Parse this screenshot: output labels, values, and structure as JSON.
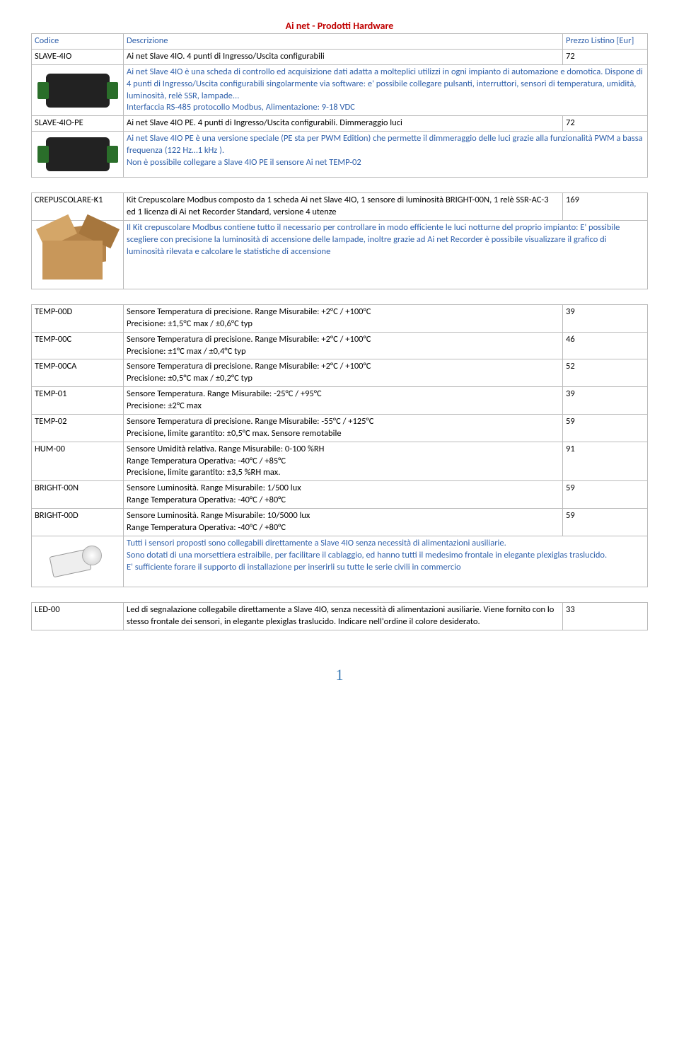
{
  "title": "Ai net - Prodotti Hardware",
  "header": {
    "code": "Codice",
    "desc": "Descrizione",
    "price": "Prezzo Listino [Eur]"
  },
  "rows": [
    {
      "code": "SLAVE-4IO",
      "desc": "Ai net Slave 4IO. 4 punti di Ingresso/Uscita configurabili",
      "price": "72",
      "note": "Ai net Slave 4IO è una scheda di controllo ed acquisizione dati adatta a molteplici utilizzi in ogni impianto di automazione e domotica. Dispone di 4 punti di Ingresso/Uscita configurabili singolarmente via software: e' possibile collegare pulsanti, interruttori, sensori di temperatura, umidità, luminosità, relè SSR, lampade...\nInterfaccia RS-485 protocollo Modbus, Alimentazione: 9-18 VDC",
      "img": "slave"
    },
    {
      "code": "SLAVE-4IO-PE",
      "desc": "Ai net Slave 4IO PE. 4 punti di Ingresso/Uscita configurabili. Dimmeraggio luci",
      "price": "72",
      "note": "Ai net Slave 4IO PE è una versione speciale (PE sta per PWM Edition) che permette il dimmeraggio delle luci grazie alla funzionalità PWM a bassa frequenza (122 Hz…1 kHz ).\nNon è possibile collegare a Slave 4IO PE il sensore Ai net TEMP-02",
      "img": "slave"
    }
  ],
  "rows2": [
    {
      "code": "CREPUSCOLARE-K1",
      "desc": "Kit Crepuscolare Modbus composto da 1 scheda Ai net Slave 4IO, 1 sensore di luminosità BRIGHT-00N, 1 relè SSR-AC-3 ed 1 licenza di Ai net Recorder Standard, versione 4 utenze",
      "price": "169",
      "note": "Il Kit crepuscolare Modbus contiene tutto il necessario per controllare in modo efficiente le luci notturne del proprio impianto:  E' possibile scegliere con precisione la luminosità di accensione delle lampade, inoltre grazie ad Ai net Recorder è possibile visualizzare il grafico di luminosità  rilevata e calcolare le statistiche di accensione",
      "img": "box"
    }
  ],
  "rows3": [
    {
      "code": "TEMP-00D",
      "desc": "Sensore Temperatura di precisione. Range Misurabile: +2°C / +100°C\nPrecisione: ±1,5°C max / ±0,6°C typ",
      "price": "39"
    },
    {
      "code": "TEMP-00C",
      "desc": "Sensore Temperatura di precisione. Range Misurabile: +2°C / +100°C\nPrecisione: ±1°C max / ±0,4°C typ",
      "price": "46"
    },
    {
      "code": "TEMP-00CA",
      "desc": "Sensore Temperatura di precisione. Range Misurabile: +2°C / +100°C\nPrecisione: ±0,5°C max / ±0,2°C typ",
      "price": "52"
    },
    {
      "code": "TEMP-01",
      "desc": "Sensore Temperatura. Range Misurabile: -25°C / +95°C\nPrecisione: ±2°C max",
      "price": "39"
    },
    {
      "code": "TEMP-02",
      "desc": "Sensore Temperatura di precisione. Range Misurabile: -55°C / +125°C\nPrecisione, limite garantito: ±0,5°C max. Sensore remotabile",
      "price": "59"
    },
    {
      "code": "HUM-00",
      "desc": "Sensore Umidità relativa. Range Misurabile: 0-100 %RH\nRange Temperatura Operativa: -40°C / +85°C\nPrecisione, limite garantito: ±3,5 %RH max.",
      "price": "91"
    },
    {
      "code": "BRIGHT-00N",
      "desc": "Sensore Luminosità. Range Misurabile: 1/500 lux\nRange Temperatura Operativa: -40°C / +80°C",
      "price": "59"
    },
    {
      "code": "BRIGHT-00D",
      "desc": "Sensore Luminosità. Range Misurabile: 10/5000 lux\nRange Temperatura Operativa: -40°C / +80°C",
      "price": "59"
    }
  ],
  "sensorNote": "Tutti i sensori proposti sono collegabili direttamente a Slave 4IO senza necessità di alimentazioni ausiliarie.\nSono dotati di una morsettiera estraibile, per facilitare il cablaggio, ed hanno tutti il medesimo frontale in elegante plexiglas traslucido.\nE' sufficiente forare il supporto di installazione per inserirli su tutte le serie civili in commercio",
  "rows4": [
    {
      "code": "LED-00",
      "desc": "Led di segnalazione collegabile direttamente a Slave 4IO, senza necessità di alimentazioni ausiliarie. Viene fornito con lo stesso frontale dei sensori, in elegante plexiglas traslucido. Indicare nell'ordine il colore desiderato.",
      "price": "33"
    }
  ],
  "pageNum": "1",
  "colors": {
    "titleRed": "#c00000",
    "headerBlue": "#2e5faa",
    "noteBlue": "#2e5faa",
    "pageBlue": "#3a7ab5",
    "border": "#bbbbbb"
  }
}
